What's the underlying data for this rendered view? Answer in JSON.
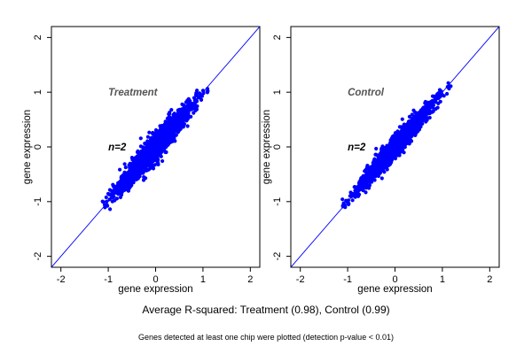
{
  "figure": {
    "caption": "Average R-squared: Treatment (0.98), Control (0.99)",
    "note": "Genes detected at least one chip were plotted (detection p-value < 0.01)"
  },
  "chart_data": [
    {
      "type": "scatter",
      "title": "Treatment",
      "annotation": "n=2",
      "xlabel": "gene expression",
      "ylabel": "gene expression",
      "xlim": [
        -2.2,
        2.2
      ],
      "ylim": [
        -2.2,
        2.2
      ],
      "xticks": [
        -2,
        -1,
        0,
        1,
        2
      ],
      "yticks": [
        -2,
        -1,
        0,
        1,
        2
      ],
      "point_color": "#0000ff",
      "reference_line": {
        "slope": 1,
        "intercept": 0,
        "color": "#0000ff"
      },
      "point_cloud": {
        "x_range": [
          -1.1,
          1.15
        ],
        "center": [
          0.0,
          0.0
        ],
        "spread_perpendicular": 0.09,
        "approx_points": 1800
      }
    },
    {
      "type": "scatter",
      "title": "Control",
      "annotation": "n=2",
      "xlabel": "gene expression",
      "ylabel": "gene expression",
      "xlim": [
        -2.2,
        2.2
      ],
      "ylim": [
        -2.2,
        2.2
      ],
      "xticks": [
        -2,
        -1,
        0,
        1,
        2
      ],
      "yticks": [
        -2,
        -1,
        0,
        1,
        2
      ],
      "point_color": "#0000ff",
      "reference_line": {
        "slope": 1,
        "intercept": 0,
        "color": "#0000ff"
      },
      "point_cloud": {
        "x_range": [
          -1.1,
          1.15
        ],
        "center": [
          0.0,
          0.0
        ],
        "spread_perpendicular": 0.075,
        "approx_points": 1800
      }
    }
  ]
}
